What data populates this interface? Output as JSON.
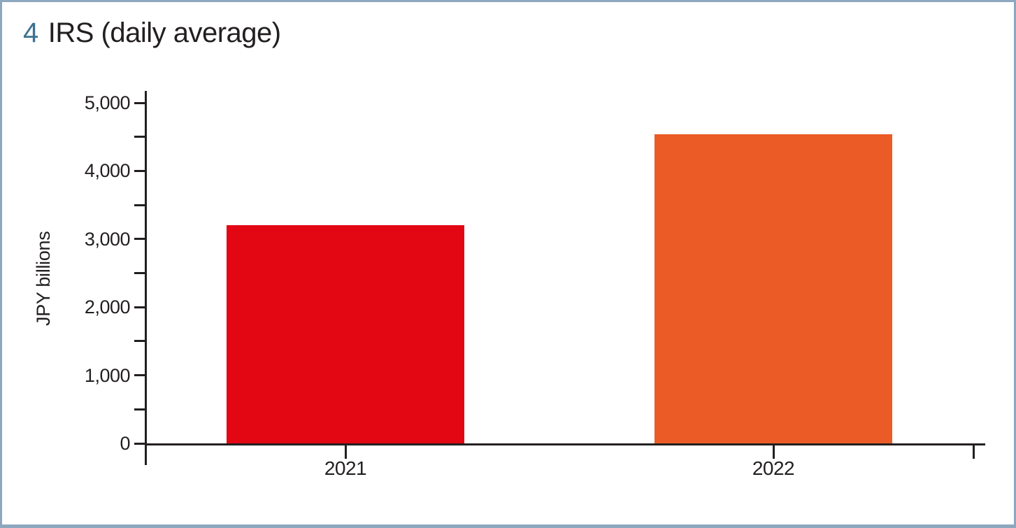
{
  "chart_data": {
    "type": "bar",
    "title_number": "4",
    "title": "IRS (daily average)",
    "ylabel": "JPY billions",
    "categories": [
      "2021",
      "2022"
    ],
    "values": [
      3200,
      4540
    ],
    "bar_colors": [
      "#e30613",
      "#eb5b25"
    ],
    "ylim": [
      0,
      5000
    ],
    "ytick_major_step": 1000,
    "ytick_minor_step": 500,
    "ytick_labels": [
      "0",
      "1,000",
      "2,000",
      "3,000",
      "4,000",
      "5,000"
    ],
    "grid": false,
    "legend": false
  },
  "colors": {
    "title_number": "#3d7191",
    "text": "#231f20",
    "axis": "#231f20",
    "frame_border": "#8ca7be",
    "background": "#ffffff"
  }
}
